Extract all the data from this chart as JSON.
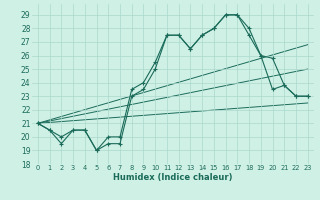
{
  "bg_color": "#cff0e4",
  "grid_color": "#aad8cc",
  "line_color": "#1a6b5a",
  "xlabel": "Humidex (Indice chaleur)",
  "xlim": [
    -0.5,
    23.5
  ],
  "ylim": [
    18.0,
    29.8
  ],
  "yticks": [
    18,
    19,
    20,
    21,
    22,
    23,
    24,
    25,
    26,
    27,
    28,
    29
  ],
  "xticks": [
    0,
    1,
    2,
    3,
    4,
    5,
    6,
    7,
    8,
    9,
    10,
    11,
    12,
    13,
    14,
    15,
    16,
    17,
    18,
    19,
    20,
    21,
    22,
    23
  ],
  "curve1_y": [
    21.0,
    20.5,
    19.5,
    20.5,
    20.5,
    19.0,
    19.5,
    19.5,
    23.0,
    23.5,
    25.0,
    27.5,
    27.5,
    26.5,
    27.5,
    28.0,
    29.0,
    29.0,
    27.5,
    26.0,
    23.5,
    23.8,
    23.0,
    23.0
  ],
  "curve2_y": [
    21.0,
    20.5,
    20.0,
    20.5,
    20.5,
    19.0,
    20.0,
    20.0,
    23.5,
    24.0,
    25.5,
    27.5,
    27.5,
    26.5,
    27.5,
    28.0,
    29.0,
    29.0,
    28.0,
    26.0,
    25.8,
    23.8,
    23.0,
    23.0
  ],
  "reg_lines": [
    [
      [
        0,
        21.0
      ],
      [
        23,
        26.8
      ]
    ],
    [
      [
        0,
        21.0
      ],
      [
        23,
        25.0
      ]
    ],
    [
      [
        0,
        21.0
      ],
      [
        23,
        22.5
      ]
    ]
  ]
}
